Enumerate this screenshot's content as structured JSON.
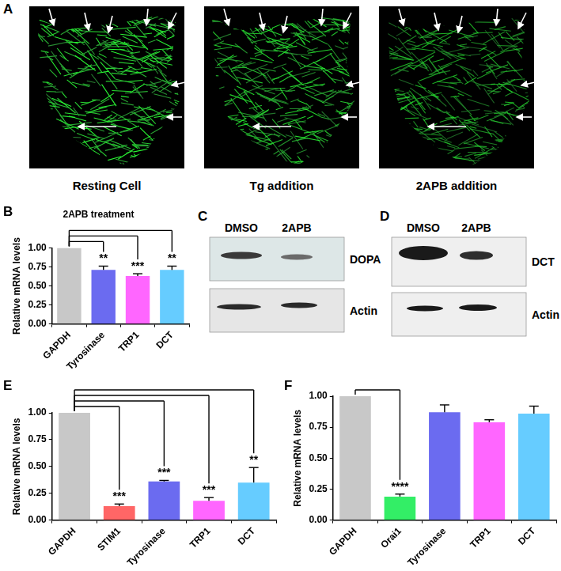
{
  "figure": {
    "images": {
      "panel": "A",
      "captions": [
        "Resting Cell",
        "Tg addition",
        "2APB addition"
      ]
    },
    "blots": [
      {
        "panel": "C",
        "lanes": [
          "DMSO",
          "2APB"
        ],
        "bands": [
          "DOPA",
          "Actin"
        ]
      },
      {
        "panel": "D",
        "lanes": [
          "DMSO",
          "2APB"
        ],
        "bands": [
          "DCT",
          "Actin"
        ]
      }
    ]
  },
  "chart_data": [
    {
      "panel": "B",
      "type": "bar",
      "title": "2APB treatment",
      "y_label": "Relative mRNA levels",
      "categories": [
        "GAPDH",
        "Tyrosinase",
        "TRP1",
        "DCT"
      ],
      "values": [
        1,
        0.71,
        0.63,
        0.71
      ],
      "errors": [
        0,
        0.05,
        0.03,
        0.05
      ],
      "significance": [
        null,
        "**",
        "***",
        "**"
      ],
      "colors": [
        "#c8c8c8",
        "#6b6bf0",
        "#ff66ff",
        "#66ccff"
      ],
      "ylim": [
        0,
        1
      ],
      "yticks": [
        {
          "value": 0,
          "label": "0.00"
        },
        0.25,
        {
          "value": 0.5,
          "label": "0.50"
        },
        0.75,
        {
          "value": 1,
          "label": "1.00"
        }
      ],
      "grid": false
    },
    {
      "panel": "E",
      "type": "bar",
      "y_label": "Relative mRNA levels",
      "categories": [
        "GAPDH",
        "STIM1",
        "Tyrosinase",
        "TRP1",
        "DCT"
      ],
      "values": [
        1,
        0.13,
        0.36,
        0.18,
        0.35
      ],
      "errors": [
        0,
        0.02,
        0.01,
        0.03,
        0.14
      ],
      "significance": [
        null,
        "***",
        "***",
        "***",
        "**"
      ],
      "colors": [
        "#c8c8c8",
        "#ff6666",
        "#6b6bf0",
        "#ff66ff",
        "#66ccff"
      ],
      "ylim": [
        0,
        1
      ],
      "yticks": [
        {
          "value": 0,
          "label": "0.00"
        },
        0.25,
        {
          "value": 0.5,
          "label": "0.50"
        },
        0.75,
        {
          "value": 1,
          "label": "1.00"
        }
      ],
      "grid": false
    },
    {
      "panel": "F",
      "type": "bar",
      "y_label": "Relative mRNA levels",
      "categories": [
        "GAPDH",
        "Orai1",
        "Tyrosinase",
        "TRP1",
        "DCT"
      ],
      "values": [
        1,
        0.19,
        0.87,
        0.79,
        0.86
      ],
      "errors": [
        0,
        0.02,
        0.06,
        0.02,
        0.06
      ],
      "significance": [
        null,
        "****",
        null,
        null,
        null
      ],
      "colors": [
        "#c8c8c8",
        "#33ee66",
        "#6b6bf0",
        "#ff66ff",
        "#66ccff"
      ],
      "ylim": [
        0,
        1
      ],
      "yticks": [
        {
          "value": 0,
          "label": "0.00"
        },
        0.25,
        {
          "value": 0.5,
          "label": "0.50"
        },
        0.75,
        {
          "value": 1,
          "label": "1.00"
        }
      ],
      "grid": false
    }
  ]
}
